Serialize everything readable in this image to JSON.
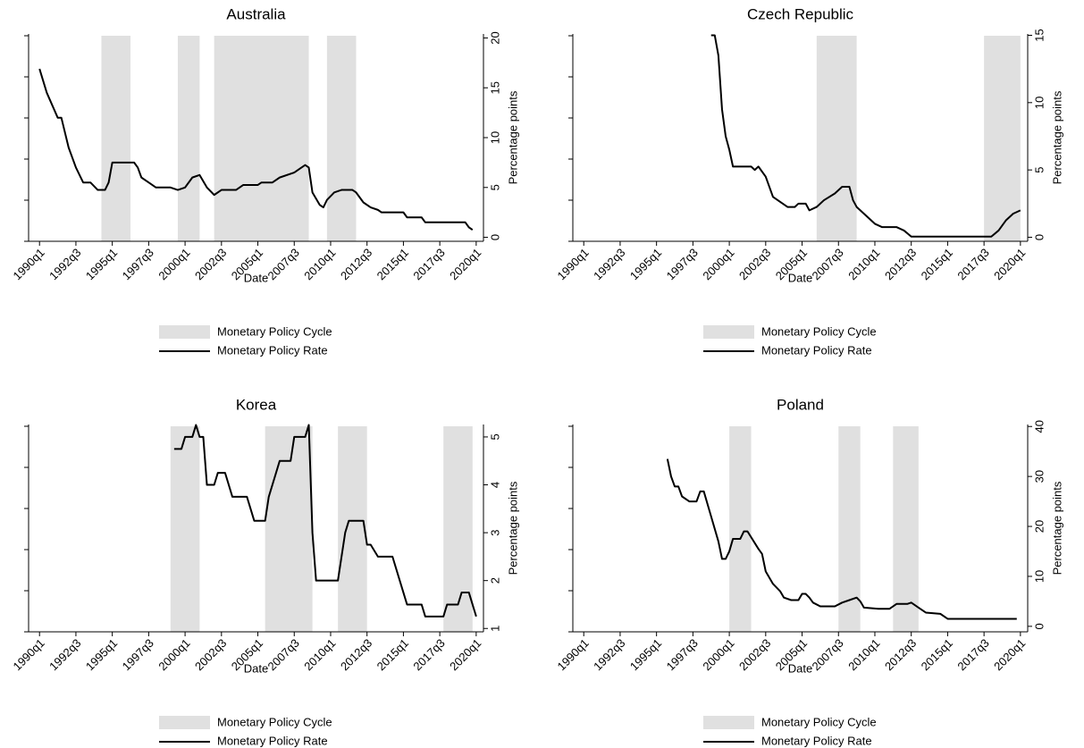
{
  "chart_data": [
    {
      "type": "line",
      "title": "Australia",
      "xlabel": "Date",
      "ylabel": "Percentage points",
      "xlim": [
        "1989q2",
        "2020q3"
      ],
      "xticks": [
        "1990q1",
        "1992q3",
        "1995q1",
        "1997q3",
        "2000q1",
        "2002q3",
        "2005q1",
        "2007q3",
        "2010q1",
        "2012q3",
        "2015q1",
        "2017q3",
        "2020q1"
      ],
      "ylim": [
        -0.4,
        20.4
      ],
      "yticks": [
        0,
        5,
        10,
        15,
        20
      ],
      "shaded": {
        "name": "Monetary Policy Cycle",
        "color": "#e0e0e0",
        "periods": [
          [
            "1994q2",
            "1996q2"
          ],
          [
            "1999q3",
            "2001q1"
          ],
          [
            "2002q1",
            "2008q3"
          ],
          [
            "2009q4",
            "2011q4"
          ]
        ]
      },
      "x": [
        "1990q1",
        "1990q3",
        "1991q2",
        "1991q3",
        "1992q1",
        "1992q3",
        "1993q1",
        "1993q3",
        "1994q1",
        "1994q3",
        "1994q4",
        "1995q1",
        "1996q3",
        "1996q4",
        "1997q1",
        "1997q3",
        "1998q1",
        "1999q1",
        "1999q3",
        "2000q1",
        "2000q3",
        "2001q1",
        "2001q3",
        "2002q1",
        "2002q3",
        "2003q3",
        "2004q1",
        "2005q1",
        "2005q2",
        "2006q1",
        "2006q3",
        "2007q3",
        "2008q1",
        "2008q2",
        "2008q3",
        "2008q4",
        "2009q2",
        "2009q3",
        "2009q4",
        "2010q2",
        "2010q4",
        "2011q3",
        "2011q4",
        "2012q2",
        "2012q4",
        "2013q2",
        "2013q3",
        "2015q1",
        "2015q2",
        "2016q2",
        "2016q3",
        "2019q2",
        "2019q3",
        "2019q4"
      ],
      "series": [
        {
          "name": "Monetary Policy Rate",
          "color": "#000000",
          "values": [
            16.9,
            14.5,
            12,
            12,
            9,
            7,
            5.5,
            5.5,
            4.75,
            4.75,
            5.5,
            7.5,
            7.5,
            7,
            6,
            5.5,
            5,
            5,
            4.75,
            5,
            6,
            6.25,
            5,
            4.25,
            4.75,
            4.75,
            5.25,
            5.25,
            5.5,
            5.5,
            6,
            6.5,
            7,
            7.25,
            7,
            4.5,
            3.25,
            3,
            3.75,
            4.5,
            4.75,
            4.75,
            4.5,
            3.5,
            3,
            2.75,
            2.5,
            2.5,
            2,
            2,
            1.5,
            1.5,
            1,
            0.75
          ]
        }
      ]
    },
    {
      "type": "line",
      "title": "Czech Republic",
      "xlabel": "Date",
      "ylabel": "Percentage points",
      "xlim": [
        "1989q2",
        "2020q3"
      ],
      "xticks": [
        "1990q1",
        "1992q3",
        "1995q1",
        "1997q3",
        "2000q1",
        "2002q3",
        "2005q1",
        "2007q3",
        "2010q1",
        "2012q3",
        "2015q1",
        "2017q3",
        "2020q1"
      ],
      "ylim": [
        -0.3,
        15.1
      ],
      "yticks": [
        0,
        5,
        10,
        15
      ],
      "shaded": {
        "name": "Monetary Policy Cycle",
        "color": "#e0e0e0",
        "periods": [
          [
            "2006q1",
            "2008q4"
          ],
          [
            "2017q3",
            "2020q1"
          ]
        ]
      },
      "x": [
        "1998q4",
        "1999q1",
        "1999q2",
        "1999q3",
        "1999q4",
        "2000q1",
        "2000q2",
        "2001q3",
        "2001q4",
        "2002q1",
        "2002q3",
        "2003q1",
        "2004q1",
        "2004q3",
        "2004q4",
        "2005q2",
        "2005q3",
        "2006q1",
        "2006q3",
        "2007q2",
        "2007q4",
        "2008q2",
        "2008q3",
        "2008q4",
        "2009q3",
        "2010q1",
        "2010q3",
        "2011q3",
        "2012q1",
        "2012q3",
        "2018q1",
        "2018q3",
        "2019q1",
        "2019q3",
        "2020q1"
      ],
      "series": [
        {
          "name": "Monetary Policy Rate",
          "color": "#000000",
          "values": [
            15,
            15,
            13.5,
            9.5,
            7.5,
            6.5,
            5.25,
            5.25,
            5,
            5.25,
            4.5,
            3,
            2.25,
            2.25,
            2.5,
            2.5,
            2,
            2.25,
            2.75,
            3.25,
            3.75,
            3.75,
            2.75,
            2.25,
            1.5,
            1,
            0.75,
            0.75,
            0.5,
            0.05,
            0.05,
            0.5,
            1.25,
            1.75,
            2
          ]
        }
      ]
    },
    {
      "type": "line",
      "title": "Korea",
      "xlabel": "Date",
      "ylabel": "Percentage points",
      "xlim": [
        "1989q2",
        "2020q3"
      ],
      "xticks": [
        "1990q1",
        "1992q3",
        "1995q1",
        "1997q3",
        "2000q1",
        "2002q3",
        "2005q1",
        "2007q3",
        "2010q1",
        "2012q3",
        "2015q1",
        "2017q3",
        "2020q1"
      ],
      "ylim": [
        0.93,
        5.26
      ],
      "yticks": [
        1,
        2,
        3,
        4,
        5
      ],
      "shaded": {
        "name": "Monetary Policy Cycle",
        "color": "#e0e0e0",
        "periods": [
          [
            "1999q1",
            "2001q1"
          ],
          [
            "2005q3",
            "2008q4"
          ],
          [
            "2010q3",
            "2012q3"
          ],
          [
            "2017q4",
            "2019q4"
          ]
        ]
      },
      "x": [
        "1999q2",
        "1999q4",
        "2000q1",
        "2000q3",
        "2000q4",
        "2001q1",
        "2001q2",
        "2001q3",
        "2002q1",
        "2002q2",
        "2002q4",
        "2003q2",
        "2004q2",
        "2004q4",
        "2005q3",
        "2005q4",
        "2006q3",
        "2007q2",
        "2007q3",
        "2008q2",
        "2008q3",
        "2008q4",
        "2009q1",
        "2010q3",
        "2010q4",
        "2011q1",
        "2011q2",
        "2012q2",
        "2012q3",
        "2012q4",
        "2013q2",
        "2014q2",
        "2014q4",
        "2015q2",
        "2016q2",
        "2016q3",
        "2017q4",
        "2018q1",
        "2018q4",
        "2019q1",
        "2019q3",
        "2019q4",
        "2020q1"
      ],
      "series": [
        {
          "name": "Monetary Policy Rate",
          "color": "#000000",
          "values": [
            4.75,
            4.75,
            5,
            5,
            5.25,
            5,
            5,
            4,
            4,
            4.25,
            4.25,
            3.75,
            3.75,
            3.25,
            3.25,
            3.75,
            4.5,
            4.5,
            5,
            5,
            5.25,
            3,
            2,
            2,
            2.5,
            3,
            3.25,
            3.25,
            2.75,
            2.75,
            2.5,
            2.5,
            2,
            1.5,
            1.5,
            1.25,
            1.25,
            1.5,
            1.5,
            1.75,
            1.75,
            1.5,
            1.25
          ]
        }
      ]
    },
    {
      "type": "line",
      "title": "Poland",
      "xlabel": "Date",
      "ylabel": "Percentage points",
      "xlim": [
        "1989q2",
        "2020q3"
      ],
      "xticks": [
        "1990q1",
        "1992q3",
        "1995q1",
        "1997q3",
        "2000q1",
        "2002q3",
        "2005q1",
        "2007q3",
        "2010q1",
        "2012q3",
        "2015q1",
        "2017q3",
        "2020q1"
      ],
      "ylim": [
        -1.1,
        40.4
      ],
      "yticks": [
        0,
        10,
        20,
        30,
        40
      ],
      "shaded": {
        "name": "Monetary Policy Cycle",
        "color": "#e0e0e0",
        "periods": [
          [
            "2000q1",
            "2001q3"
          ],
          [
            "2007q3",
            "2009q1"
          ],
          [
            "2011q2",
            "2013q1"
          ]
        ]
      },
      "x": [
        "1995q4",
        "1996q1",
        "1996q2",
        "1996q3",
        "1996q4",
        "1997q2",
        "1997q4",
        "1998q1",
        "1998q2",
        "1998q4",
        "1999q2",
        "1999q3",
        "1999q4",
        "2000q1",
        "2000q2",
        "2000q4",
        "2001q1",
        "2001q2",
        "2002q1",
        "2002q2",
        "2002q3",
        "2003q1",
        "2003q3",
        "2003q4",
        "2004q2",
        "2004q4",
        "2005q1",
        "2005q2",
        "2005q3",
        "2005q4",
        "2006q2",
        "2007q2",
        "2007q4",
        "2008q2",
        "2008q4",
        "2009q1",
        "2009q2",
        "2010q2",
        "2011q1",
        "2011q3",
        "2012q2",
        "2012q3",
        "2013q1",
        "2013q3",
        "2014q3",
        "2015q1",
        "2019q4"
      ],
      "series": [
        {
          "name": "Monetary Policy Rate",
          "color": "#000000",
          "values": [
            33.5,
            30,
            28,
            28,
            26,
            25,
            25,
            27,
            27,
            22,
            17,
            13.5,
            13.5,
            15,
            17.5,
            17.5,
            19,
            19,
            15.5,
            14.5,
            11,
            8.5,
            7,
            5.75,
            5.25,
            5.25,
            6.5,
            6.5,
            5.75,
            4.75,
            4,
            4,
            4.75,
            5.25,
            5.75,
            5,
            3.75,
            3.5,
            3.5,
            4.5,
            4.5,
            4.75,
            3.75,
            2.75,
            2.5,
            1.5,
            1.5
          ]
        }
      ]
    }
  ]
}
